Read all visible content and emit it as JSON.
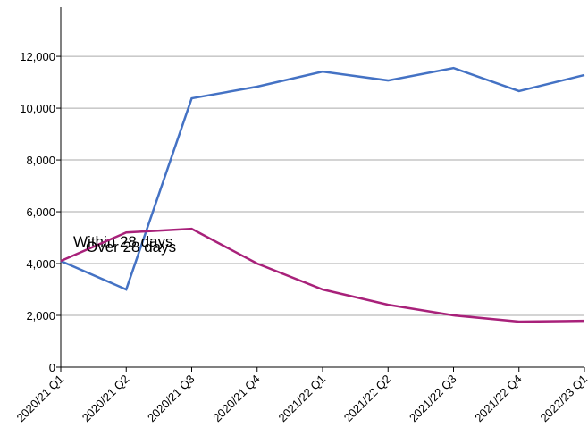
{
  "chart_data": {
    "type": "line",
    "categories": [
      "2020/21 Q1",
      "2020/21 Q2",
      "2020/21 Q3",
      "2020/21 Q4",
      "2021/22 Q1",
      "2021/22 Q2",
      "2021/22 Q3",
      "2021/22 Q4",
      "2022/23 Q1"
    ],
    "series": [
      {
        "name": "Within 28 days",
        "color": "#4472c4",
        "values": [
          4100,
          3000,
          10380,
          10830,
          11410,
          11070,
          11550,
          10660,
          11280
        ]
      },
      {
        "name": "Over 28 days",
        "color": "#a8217a",
        "values": [
          4100,
          5200,
          5340,
          4000,
          3000,
          2410,
          2000,
          1760,
          1790
        ]
      }
    ],
    "ylim": [
      0,
      13900
    ],
    "yticks": [
      0,
      {
        "value": 2000,
        "label": "2,000"
      },
      {
        "value": 4000,
        "label": "4,000"
      },
      {
        "value": 6000,
        "label": "6,000"
      },
      {
        "value": 8000,
        "label": "8,000"
      },
      {
        "value": 10000,
        "label": "10,000"
      },
      {
        "value": 12000,
        "label": "12,000"
      }
    ],
    "grid": true
  }
}
